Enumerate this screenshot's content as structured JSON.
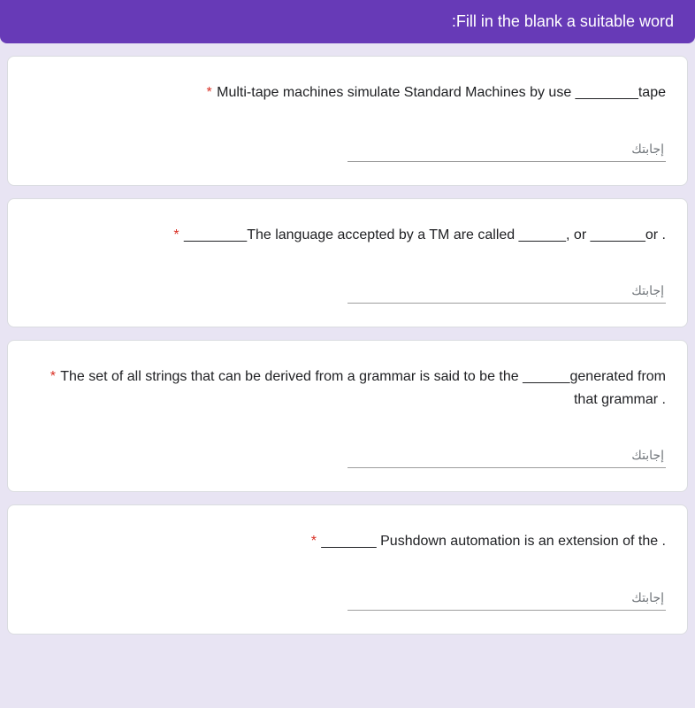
{
  "header": {
    "title": "Fill in the blank a suitable word:"
  },
  "questions": [
    {
      "text": "Multi-tape machines simulate Standard Machines by use ________tape",
      "required": "*",
      "placeholder": "إجابتك"
    },
    {
      "text": "________The language accepted by a TM are called ______, or _______or .",
      "required": "*",
      "placeholder": "إجابتك"
    },
    {
      "text": "The set of all strings that can be derived from a grammar is said to be the ______generated from that grammar .",
      "required": "*",
      "placeholder": "إجابتك"
    },
    {
      "text": "_______ Pushdown automation is an extension of the .",
      "required": "*",
      "placeholder": "إجابتك"
    }
  ],
  "colors": {
    "header_bg": "#673ab7",
    "header_text": "#ffffff",
    "page_bg": "#e8e4f3",
    "card_bg": "#ffffff",
    "required": "#d93025",
    "text": "#202124",
    "placeholder": "#70757a",
    "underline": "#9e9e9e"
  }
}
